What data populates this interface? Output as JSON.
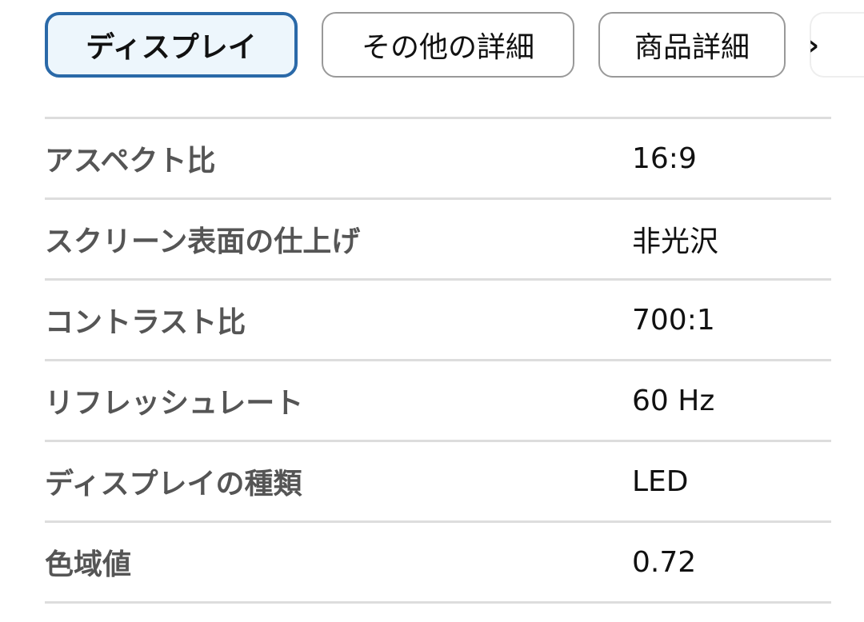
{
  "tabs": [
    {
      "label": "ディスプレイ",
      "active": true
    },
    {
      "label": "その他の詳細",
      "active": false
    },
    {
      "label": "商品詳細",
      "active": false
    }
  ],
  "tabs_next_icon": "chevron-right-icon",
  "accent_color": "#2a69a8",
  "specs": [
    {
      "label": "アスペクト比",
      "value": "16:9"
    },
    {
      "label": "スクリーン表面の仕上げ",
      "value": "非光沢"
    },
    {
      "label": "コントラスト比",
      "value": "700:1"
    },
    {
      "label": "リフレッシュレート",
      "value": "60 Hz"
    },
    {
      "label": "ディスプレイの種類",
      "value": "LED"
    },
    {
      "label": "色域値",
      "value": "0.72"
    }
  ]
}
